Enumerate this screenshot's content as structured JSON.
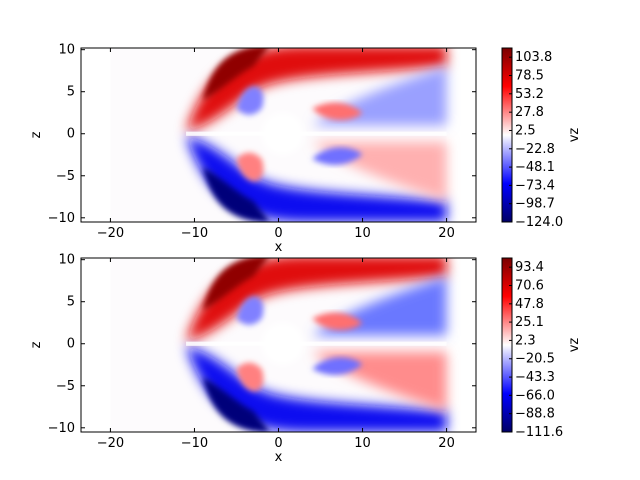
{
  "chart_data": [
    {
      "type": "heatmap",
      "title": "",
      "xlabel": "x",
      "ylabel": "z",
      "xlim": [
        -23.5,
        23.5
      ],
      "ylim": [
        -10.5,
        10.2
      ],
      "xticks": [
        -20,
        -10,
        0,
        10,
        20
      ],
      "yticks": [
        -10,
        -5,
        0,
        5,
        10
      ],
      "colorbar": {
        "label": "vz",
        "range": [
          -124.0,
          116.5
        ],
        "ticks": [
          103.8,
          78.5,
          53.2,
          27.8,
          2.5,
          -22.8,
          -48.1,
          -73.4,
          -98.7,
          -124.0
        ]
      },
      "colormap": {
        "low": "#000066",
        "mid": "#ffffff",
        "high": "#7a0000"
      }
    },
    {
      "type": "heatmap",
      "title": "",
      "xlabel": "x",
      "ylabel": "z",
      "xlim": [
        -23.5,
        23.5
      ],
      "ylim": [
        -10.5,
        10.2
      ],
      "xticks": [
        -20,
        -10,
        0,
        10,
        20
      ],
      "yticks": [
        -10,
        -5,
        0,
        5,
        10
      ],
      "colorbar": {
        "label": "vz",
        "range": [
          -111.6,
          104.8
        ],
        "ticks": [
          93.4,
          70.6,
          47.8,
          25.1,
          2.3,
          -20.5,
          -43.3,
          -66.0,
          -88.8,
          -111.6
        ]
      },
      "colormap": {
        "low": "#000066",
        "mid": "#ffffff",
        "high": "#7a0000"
      }
    }
  ]
}
